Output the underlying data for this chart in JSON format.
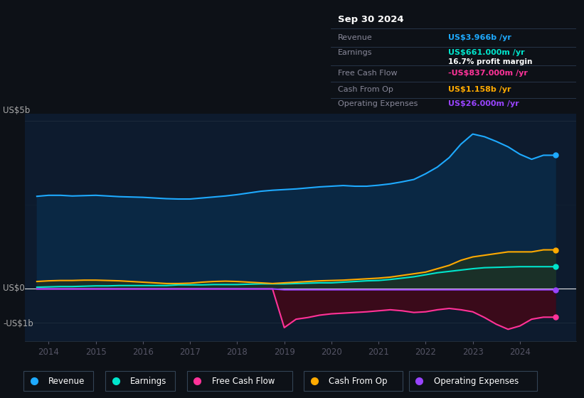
{
  "bg_color": "#0d1117",
  "chart_bg": "#0d1b2e",
  "title": "Sep 30 2024",
  "years": [
    2013.75,
    2014.0,
    2014.25,
    2014.5,
    2014.75,
    2015.0,
    2015.25,
    2015.5,
    2015.75,
    2016.0,
    2016.25,
    2016.5,
    2016.75,
    2017.0,
    2017.25,
    2017.5,
    2017.75,
    2018.0,
    2018.25,
    2018.5,
    2018.75,
    2019.0,
    2019.25,
    2019.5,
    2019.75,
    2020.0,
    2020.25,
    2020.5,
    2020.75,
    2021.0,
    2021.25,
    2021.5,
    2021.75,
    2022.0,
    2022.25,
    2022.5,
    2022.75,
    2023.0,
    2023.25,
    2023.5,
    2023.75,
    2024.0,
    2024.25,
    2024.5,
    2024.75
  ],
  "revenue": [
    2.75,
    2.78,
    2.78,
    2.76,
    2.77,
    2.78,
    2.76,
    2.74,
    2.73,
    2.72,
    2.7,
    2.68,
    2.67,
    2.67,
    2.7,
    2.73,
    2.76,
    2.8,
    2.85,
    2.9,
    2.93,
    2.95,
    2.97,
    3.0,
    3.03,
    3.05,
    3.07,
    3.05,
    3.05,
    3.08,
    3.12,
    3.18,
    3.25,
    3.42,
    3.62,
    3.9,
    4.3,
    4.6,
    4.52,
    4.38,
    4.22,
    4.0,
    3.85,
    3.97,
    3.97
  ],
  "earnings": [
    0.05,
    0.06,
    0.07,
    0.07,
    0.08,
    0.09,
    0.09,
    0.1,
    0.1,
    0.1,
    0.1,
    0.1,
    0.12,
    0.12,
    0.12,
    0.13,
    0.13,
    0.13,
    0.14,
    0.15,
    0.15,
    0.15,
    0.16,
    0.17,
    0.18,
    0.18,
    0.2,
    0.22,
    0.24,
    0.25,
    0.28,
    0.32,
    0.36,
    0.42,
    0.48,
    0.52,
    0.56,
    0.6,
    0.63,
    0.64,
    0.65,
    0.66,
    0.66,
    0.66,
    0.66
  ],
  "free_cash_flow": [
    0.0,
    0.0,
    0.0,
    0.0,
    0.0,
    0.0,
    0.0,
    0.0,
    0.0,
    0.0,
    0.0,
    0.0,
    0.0,
    0.0,
    0.0,
    0.0,
    0.0,
    0.0,
    0.0,
    0.0,
    0.0,
    -1.15,
    -0.9,
    -0.85,
    -0.78,
    -0.74,
    -0.72,
    -0.7,
    -0.68,
    -0.65,
    -0.62,
    -0.65,
    -0.7,
    -0.68,
    -0.62,
    -0.58,
    -0.62,
    -0.68,
    -0.85,
    -1.05,
    -1.2,
    -1.1,
    -0.9,
    -0.84,
    -0.84
  ],
  "cash_from_op": [
    0.22,
    0.24,
    0.25,
    0.25,
    0.26,
    0.26,
    0.25,
    0.24,
    0.22,
    0.2,
    0.18,
    0.16,
    0.16,
    0.17,
    0.2,
    0.22,
    0.23,
    0.22,
    0.2,
    0.18,
    0.16,
    0.18,
    0.2,
    0.22,
    0.24,
    0.25,
    0.26,
    0.28,
    0.3,
    0.32,
    0.35,
    0.4,
    0.45,
    0.5,
    0.6,
    0.7,
    0.85,
    0.95,
    1.0,
    1.05,
    1.1,
    1.1,
    1.1,
    1.16,
    1.16
  ],
  "op_expenses": [
    0.0,
    0.0,
    0.0,
    0.0,
    0.0,
    0.0,
    0.0,
    0.0,
    0.0,
    0.0,
    0.0,
    0.0,
    0.0,
    0.0,
    0.0,
    0.0,
    0.0,
    0.0,
    0.0,
    0.0,
    0.0,
    -0.026,
    -0.026,
    -0.026,
    -0.026,
    -0.026,
    -0.026,
    -0.026,
    -0.026,
    -0.026,
    -0.026,
    -0.026,
    -0.026,
    -0.026,
    -0.026,
    -0.026,
    -0.026,
    -0.026,
    -0.026,
    -0.026,
    -0.026,
    -0.026,
    -0.026,
    -0.026,
    -0.026
  ],
  "xlim": [
    2013.5,
    2025.2
  ],
  "ylim": [
    -1.55,
    5.2
  ],
  "xticks": [
    2014,
    2015,
    2016,
    2017,
    2018,
    2019,
    2020,
    2021,
    2022,
    2023,
    2024
  ],
  "y_label_us5b": "US$5b",
  "y_label_us0": "US$0",
  "y_label_usm1b": "-US$1b",
  "y_val_5b": 5.0,
  "y_val_0": 0.0,
  "y_val_m1b": -1.0,
  "revenue_color": "#1eaaff",
  "earnings_color": "#00e5cc",
  "fcf_color": "#ff3399",
  "cash_op_color": "#ffaa00",
  "op_exp_color": "#9944ff",
  "revenue_fill": "#0a2844",
  "earnings_fill": "#0a3a38",
  "cash_op_fill": "#1a3028",
  "fcf_fill": "#3a0a1a",
  "legend_items": [
    "Revenue",
    "Earnings",
    "Free Cash Flow",
    "Cash From Op",
    "Operating Expenses"
  ],
  "legend_colors": [
    "#1eaaff",
    "#00e5cc",
    "#ff3399",
    "#ffaa00",
    "#9944ff"
  ],
  "info_box": {
    "date": "Sep 30 2024",
    "revenue_val": "US$3.966b",
    "earnings_val": "US$661.000m",
    "margin": "16.7%",
    "fcf_val": "-US$837.000m",
    "cash_op_val": "US$1.158b",
    "op_exp_val": "US$26.000m"
  },
  "info_revenue_color": "#1eaaff",
  "info_earnings_color": "#00e5cc",
  "info_fcf_color": "#ff3399",
  "info_cash_op_color": "#ffaa00",
  "info_op_exp_color": "#9944ff"
}
